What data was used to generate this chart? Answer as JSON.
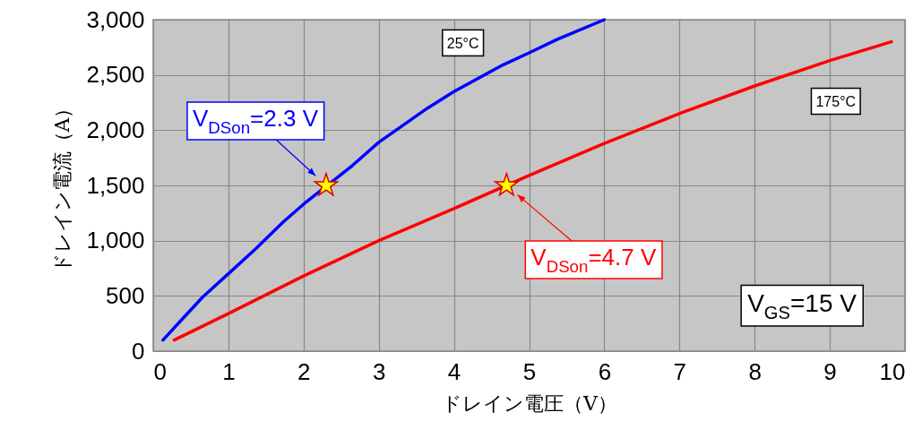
{
  "chart_data": {
    "type": "line",
    "xlabel": "ドレイン電圧（V）",
    "ylabel": "ドレイン電流（A）",
    "xlim": [
      0,
      10
    ],
    "xticks": [
      0,
      1,
      2,
      3,
      4,
      5,
      6,
      7,
      8,
      9,
      10
    ],
    "ylim": [
      0,
      3000
    ],
    "yticks": [
      0,
      500,
      {
        "value": 1000,
        "label": "1,000"
      },
      {
        "value": 1500,
        "label": "1,500"
      },
      {
        "value": 2000,
        "label": "2,000"
      },
      {
        "value": 2500,
        "label": "2,500"
      },
      {
        "value": 3000,
        "label": "3,000"
      }
    ],
    "grid": true,
    "marker": "none",
    "series": [
      {
        "name": "25°C",
        "color": "#0000ff",
        "x": [
          0.13,
          0.4,
          0.66,
          1.0,
          1.37,
          1.73,
          2.0,
          2.65,
          3.0,
          3.65,
          4.0,
          4.65,
          5.0,
          5.37,
          6.0
        ],
        "values": [
          100,
          300,
          490,
          700,
          930,
          1170,
          1330,
          1680,
          1890,
          2200,
          2350,
          2590,
          2700,
          2820,
          3000
        ]
      },
      {
        "name": "175°C",
        "color": "#ff0000",
        "x": [
          0.28,
          1,
          2,
          3,
          4,
          5,
          6,
          7,
          8,
          9,
          9.82
        ],
        "values": [
          100,
          340,
          680,
          1000,
          1290,
          1590,
          1880,
          2150,
          2400,
          2630,
          2800
        ]
      },
      {
        "type": "scatter",
        "marker": "star",
        "color": "#ffff00",
        "x": [
          2.3,
          4.7
        ],
        "values": [
          1500,
          1500
        ]
      }
    ],
    "annotations": [
      {
        "text": "V$_{DSon}$=2.3 V",
        "x": 2.3,
        "y": 1500
      },
      {
        "text": "V$_{DSon}$=4.7 V",
        "x": 4.7,
        "y": 1500
      },
      "V$_{GS}$=15 V"
    ]
  }
}
